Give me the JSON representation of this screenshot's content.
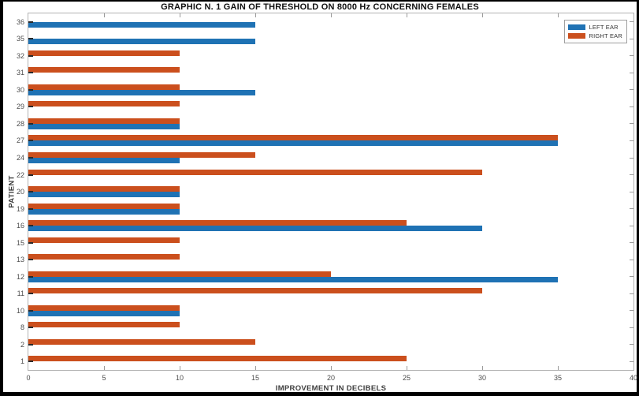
{
  "figure": {
    "background": "#000000",
    "plot_border_color": "#b3b3b3"
  },
  "chart_data": {
    "type": "bar",
    "orientation": "horizontal",
    "title": "GRAPHIC N. 1 GAIN OF THRESHOLD ON 8000 Hz CONCERNING FEMALES",
    "xlabel": "IMPROVEMENT IN DECIBELS",
    "ylabel": "PATIENT",
    "xlim": [
      0,
      40
    ],
    "xticks": [
      0,
      5,
      10,
      15,
      20,
      25,
      30,
      35,
      40
    ],
    "grid": false,
    "legend_position": "top-right",
    "categories": [
      "36",
      "35",
      "32",
      "31",
      "30",
      "29",
      "28",
      "27",
      "24",
      "22",
      "20",
      "19",
      "16",
      "15",
      "13",
      "12",
      "11",
      "10",
      "8",
      "2",
      "1"
    ],
    "series": [
      {
        "name": "LEFT EAR",
        "color": "#1F72B4",
        "values": [
          15,
          15,
          0,
          0,
          15,
          0,
          10,
          35,
          10,
          0,
          10,
          10,
          30,
          0,
          0,
          35,
          0,
          10,
          0,
          0,
          0
        ]
      },
      {
        "name": "RIGHT EAR",
        "color": "#CB4F1D",
        "values": [
          0,
          0,
          10,
          10,
          10,
          10,
          10,
          35,
          15,
          30,
          10,
          10,
          25,
          10,
          10,
          20,
          30,
          10,
          10,
          15,
          25
        ]
      }
    ]
  }
}
